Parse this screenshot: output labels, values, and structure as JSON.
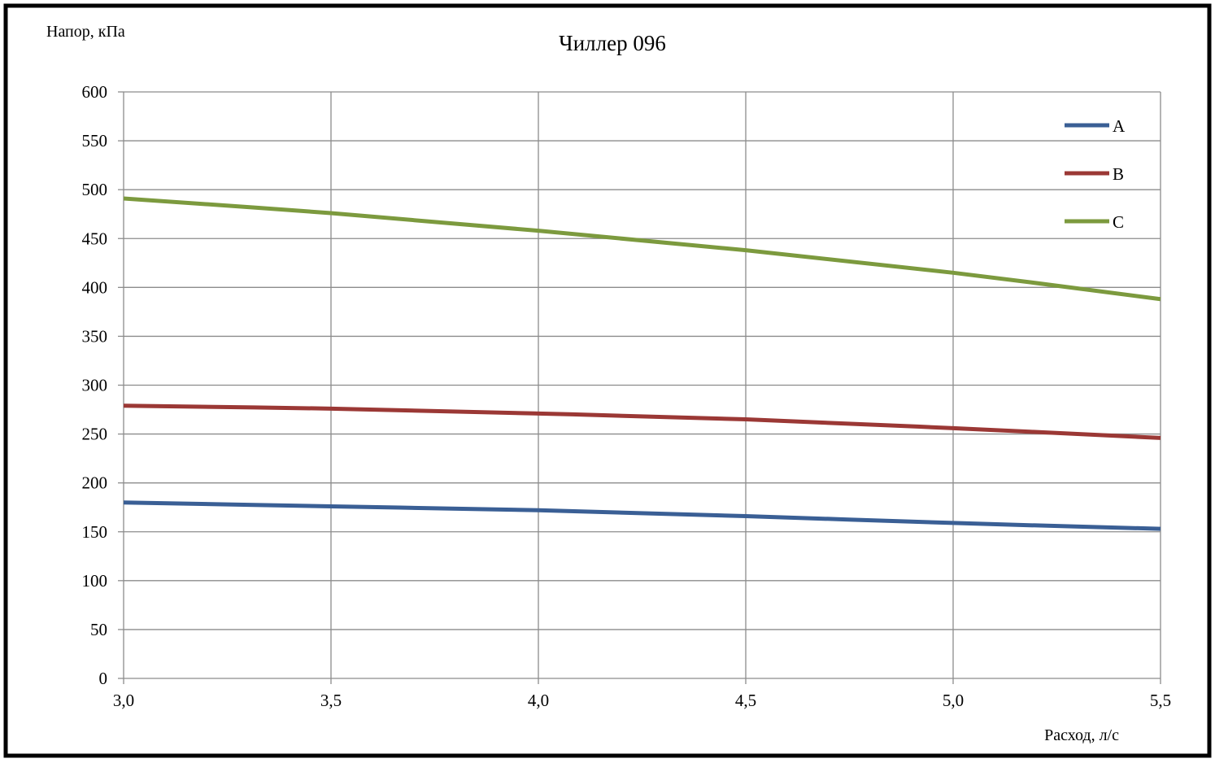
{
  "chart_data": {
    "type": "line",
    "title": "Чиллер 096",
    "xlabel": "Расход, л/с",
    "ylabel": "Напор, кПа",
    "xlim": [
      3.0,
      5.5
    ],
    "ylim": [
      0,
      600
    ],
    "x_ticks": [
      3.0,
      3.5,
      4.0,
      4.5,
      5.0,
      5.5
    ],
    "x_tick_labels": [
      "3,0",
      "3,5",
      "4,0",
      "4,5",
      "5,0",
      "5,5"
    ],
    "y_ticks": [
      0,
      50,
      100,
      150,
      200,
      250,
      300,
      350,
      400,
      450,
      500,
      550,
      600
    ],
    "y_tick_labels": [
      "0",
      "50",
      "100",
      "150",
      "200",
      "250",
      "300",
      "350",
      "400",
      "450",
      "500",
      "550",
      "600"
    ],
    "grid": true,
    "legend_position": "top-right",
    "x": [
      3.0,
      3.5,
      4.0,
      4.5,
      5.0,
      5.5
    ],
    "series": [
      {
        "name": "A",
        "color": "#3a5f95",
        "values": [
          180,
          176,
          172,
          166,
          159,
          153
        ]
      },
      {
        "name": "B",
        "color": "#9b3835",
        "values": [
          279,
          276,
          271,
          265,
          256,
          246
        ]
      },
      {
        "name": "C",
        "color": "#7c9a3e",
        "values": [
          491,
          476,
          458,
          438,
          415,
          388
        ]
      }
    ]
  }
}
